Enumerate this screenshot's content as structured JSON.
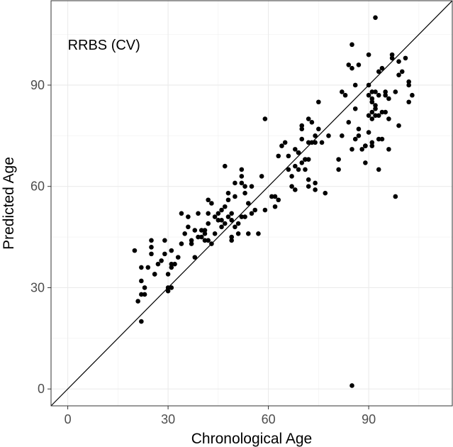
{
  "chart_data": {
    "type": "scatter",
    "title": "",
    "annotation": "RRBS (CV)",
    "xlabel": "Chronological Age",
    "ylabel": "Predicted Age",
    "xlim": [
      -5,
      115
    ],
    "ylim": [
      -5,
      115
    ],
    "xticks": [
      0,
      30,
      60,
      90
    ],
    "yticks": [
      0,
      30,
      60,
      90
    ],
    "xtick_labels": [
      "0",
      "30",
      "60",
      "90"
    ],
    "ytick_labels": [
      "0",
      "30",
      "60",
      "90"
    ],
    "grid": true,
    "reference_line": {
      "slope": 1,
      "intercept": 0
    },
    "point_color": "#000000",
    "points": [
      [
        20,
        41
      ],
      [
        21,
        26
      ],
      [
        22,
        36
      ],
      [
        22,
        32
      ],
      [
        22,
        28
      ],
      [
        22,
        20
      ],
      [
        23,
        28
      ],
      [
        23,
        30
      ],
      [
        24,
        36
      ],
      [
        25,
        40
      ],
      [
        25,
        42
      ],
      [
        25,
        44
      ],
      [
        26,
        34
      ],
      [
        26,
        34
      ],
      [
        27,
        37
      ],
      [
        28,
        38
      ],
      [
        29,
        44
      ],
      [
        29,
        40
      ],
      [
        30,
        34
      ],
      [
        30,
        30
      ],
      [
        30,
        29
      ],
      [
        31,
        37
      ],
      [
        31,
        36
      ],
      [
        31,
        30
      ],
      [
        31,
        41
      ],
      [
        32,
        37
      ],
      [
        33,
        39
      ],
      [
        34,
        43
      ],
      [
        34,
        52
      ],
      [
        35,
        46
      ],
      [
        36,
        48
      ],
      [
        36,
        51
      ],
      [
        37,
        43
      ],
      [
        37,
        44
      ],
      [
        38,
        39
      ],
      [
        38,
        47
      ],
      [
        39,
        45
      ],
      [
        39,
        52
      ],
      [
        40,
        47
      ],
      [
        40,
        45
      ],
      [
        41,
        44
      ],
      [
        41,
        46
      ],
      [
        41,
        47
      ],
      [
        42,
        52
      ],
      [
        42,
        56
      ],
      [
        42,
        49
      ],
      [
        42,
        44
      ],
      [
        43,
        43
      ],
      [
        43,
        55
      ],
      [
        44,
        51
      ],
      [
        44,
        46
      ],
      [
        45,
        52
      ],
      [
        45,
        50
      ],
      [
        46,
        50
      ],
      [
        46,
        53
      ],
      [
        46,
        48
      ],
      [
        47,
        54
      ],
      [
        47,
        49
      ],
      [
        47,
        66
      ],
      [
        48,
        58
      ],
      [
        48,
        56
      ],
      [
        48,
        51
      ],
      [
        49,
        52
      ],
      [
        49,
        50
      ],
      [
        49,
        45
      ],
      [
        49,
        44
      ],
      [
        50,
        61
      ],
      [
        50,
        57
      ],
      [
        50,
        48
      ],
      [
        51,
        49
      ],
      [
        51,
        46
      ],
      [
        52,
        63
      ],
      [
        52,
        61
      ],
      [
        52,
        65
      ],
      [
        52,
        51
      ],
      [
        53,
        60
      ],
      [
        53,
        58
      ],
      [
        53,
        51
      ],
      [
        54,
        55
      ],
      [
        54,
        46
      ],
      [
        55,
        60
      ],
      [
        55,
        52
      ],
      [
        56,
        53
      ],
      [
        57,
        46
      ],
      [
        58,
        63
      ],
      [
        59,
        80
      ],
      [
        59,
        53
      ],
      [
        61,
        57
      ],
      [
        62,
        54
      ],
      [
        62,
        57
      ],
      [
        63,
        56
      ],
      [
        63,
        69
      ],
      [
        64,
        72
      ],
      [
        65,
        73
      ],
      [
        66,
        65
      ],
      [
        66,
        69
      ],
      [
        67,
        60
      ],
      [
        67,
        63
      ],
      [
        68,
        66
      ],
      [
        68,
        59
      ],
      [
        68,
        71
      ],
      [
        69,
        70
      ],
      [
        69,
        65
      ],
      [
        69,
        70
      ],
      [
        70,
        67
      ],
      [
        70,
        74
      ],
      [
        70,
        77
      ],
      [
        70,
        78
      ],
      [
        71,
        65
      ],
      [
        71,
        68
      ],
      [
        71,
        68
      ],
      [
        72,
        73
      ],
      [
        72,
        80
      ],
      [
        72,
        68
      ],
      [
        72,
        62
      ],
      [
        72,
        60
      ],
      [
        73,
        79
      ],
      [
        73,
        73
      ],
      [
        74,
        61
      ],
      [
        74,
        59
      ],
      [
        74,
        73
      ],
      [
        74,
        75
      ],
      [
        75,
        85
      ],
      [
        75,
        77
      ],
      [
        76,
        73
      ],
      [
        77,
        58
      ],
      [
        78,
        75
      ],
      [
        81,
        65
      ],
      [
        81,
        68
      ],
      [
        82,
        88
      ],
      [
        82,
        75
      ],
      [
        83,
        87
      ],
      [
        84,
        79
      ],
      [
        84,
        96
      ],
      [
        85,
        102
      ],
      [
        85,
        95
      ],
      [
        85,
        71
      ],
      [
        85,
        1
      ],
      [
        86,
        83
      ],
      [
        86,
        90
      ],
      [
        86,
        74
      ],
      [
        87,
        96
      ],
      [
        87,
        77
      ],
      [
        87,
        75
      ],
      [
        88,
        71
      ],
      [
        89,
        72
      ],
      [
        89,
        67
      ],
      [
        89,
        72
      ],
      [
        90,
        99
      ],
      [
        90,
        90
      ],
      [
        90,
        87
      ],
      [
        90,
        81
      ],
      [
        90,
        76
      ],
      [
        91,
        88
      ],
      [
        91,
        85
      ],
      [
        91,
        86
      ],
      [
        91,
        85
      ],
      [
        91,
        82
      ],
      [
        91,
        80
      ],
      [
        91,
        73
      ],
      [
        91,
        72
      ],
      [
        92,
        110
      ],
      [
        92,
        88
      ],
      [
        92,
        84
      ],
      [
        92,
        83
      ],
      [
        92,
        81
      ],
      [
        93,
        94
      ],
      [
        93,
        87
      ],
      [
        93,
        81
      ],
      [
        93,
        74
      ],
      [
        93,
        65
      ],
      [
        94,
        82
      ],
      [
        94,
        95
      ],
      [
        94,
        74
      ],
      [
        95,
        82
      ],
      [
        95,
        87
      ],
      [
        95,
        88
      ],
      [
        96,
        71
      ],
      [
        96,
        80
      ],
      [
        96,
        86
      ],
      [
        97,
        98
      ],
      [
        97,
        99
      ],
      [
        98,
        88
      ],
      [
        98,
        57
      ],
      [
        99,
        97
      ],
      [
        99,
        93
      ],
      [
        99,
        78
      ],
      [
        100,
        94
      ],
      [
        101,
        98
      ],
      [
        102,
        91
      ],
      [
        102,
        85
      ],
      [
        102,
        90
      ],
      [
        103,
        87
      ]
    ]
  }
}
